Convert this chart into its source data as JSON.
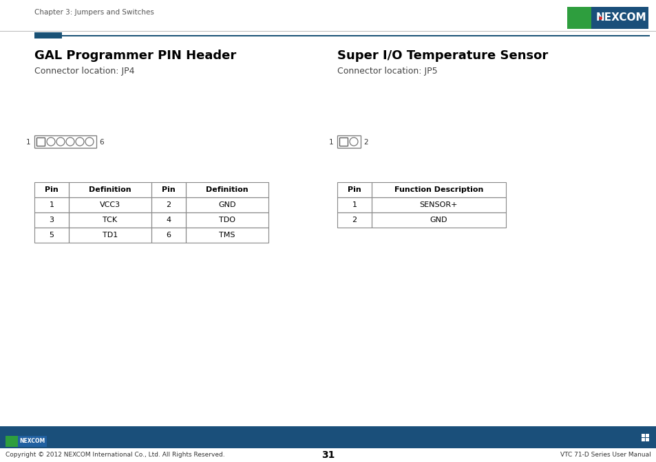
{
  "bg_color": "#ffffff",
  "chapter_text": "Chapter 3: Jumpers and Switches",
  "header_blue": "#1a5276",
  "header_line_color": "#cccccc",
  "left_title": "GAL Programmer PIN Header",
  "left_subtitle": "Connector location: JP4",
  "right_title": "Super I/O Temperature Sensor",
  "right_subtitle": "Connector location: JP5",
  "left_table_headers": [
    "Pin",
    "Definition",
    "Pin",
    "Definition"
  ],
  "left_table_data": [
    [
      "1",
      "VCC3",
      "2",
      "GND"
    ],
    [
      "3",
      "TCK",
      "4",
      "TDO"
    ],
    [
      "5",
      "TD1",
      "6",
      "TMS"
    ]
  ],
  "right_table_headers": [
    "Pin",
    "Function Description"
  ],
  "right_table_data": [
    [
      "1",
      "SENSOR+"
    ],
    [
      "2",
      "GND"
    ]
  ],
  "footer_bar_color": "#1a4f7a",
  "footer_text_left": "Copyright © 2012 NEXCOM International Co., Ltd. All Rights Reserved.",
  "footer_text_center": "31",
  "footer_text_right": "VTC 71-D Series User Manual",
  "nexcom_green": "#2e9e3e",
  "nexcom_blue": "#1a4f7a",
  "table_border": "#888888",
  "text_color": "#000000",
  "subtle_text": "#444444"
}
